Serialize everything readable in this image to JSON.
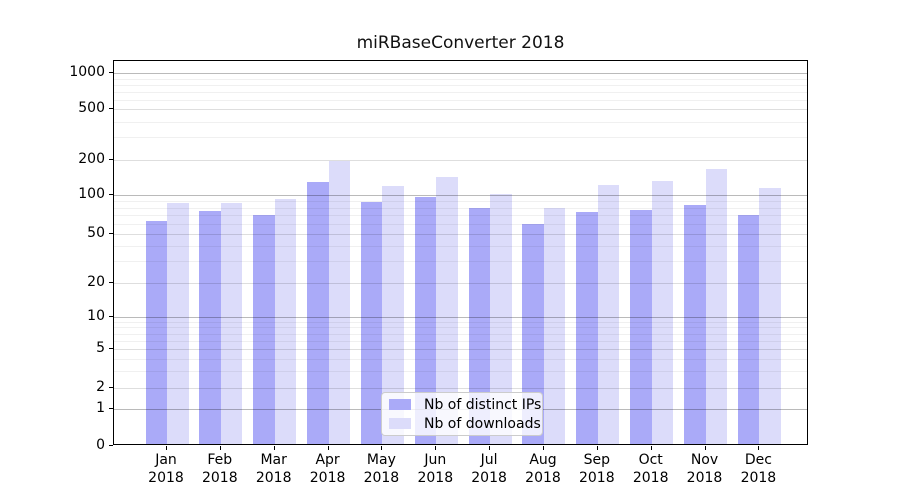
{
  "title": "miRBaseConverter 2018",
  "chart_data": {
    "type": "bar",
    "title": "miRBaseConverter 2018",
    "categories": [
      "Jan",
      "Feb",
      "Mar",
      "Apr",
      "May",
      "Jun",
      "Jul",
      "Aug",
      "Sep",
      "Oct",
      "Nov",
      "Dec"
    ],
    "x_tick_year": "2018",
    "series": [
      {
        "name": "Nb of distinct IPs",
        "color": "#aaaaf8",
        "values": [
          61,
          73,
          67,
          125,
          85,
          94,
          77,
          57,
          71,
          74,
          81,
          67
        ]
      },
      {
        "name": "Nb of downloads",
        "color": "#dcdcfa",
        "values": [
          83,
          83,
          90,
          187,
          115,
          137,
          98,
          76,
          117,
          126,
          160,
          110
        ]
      }
    ],
    "yscale": "symlog",
    "yticks": [
      0,
      1,
      2,
      5,
      10,
      20,
      50,
      100,
      200,
      500,
      1000
    ],
    "ytick_labels": [
      "0",
      "1",
      "2",
      "5",
      "10",
      "20",
      "50",
      "100",
      "200",
      "500",
      "1000"
    ],
    "ylim": [
      0,
      1400
    ],
    "grid": "horizontal major and minor gridlines, drawn over bars",
    "legend_position": "inside plot, lower center"
  },
  "legend": {
    "items": [
      {
        "label": "Nb of distinct IPs",
        "color": "#aaaaf8"
      },
      {
        "label": "Nb of downloads",
        "color": "#dcdcfa"
      }
    ]
  },
  "colors": {
    "series_ips": "#aaaaf8",
    "series_downloads": "#dcdcfa",
    "spine": "#000000",
    "background": "#ffffff"
  }
}
